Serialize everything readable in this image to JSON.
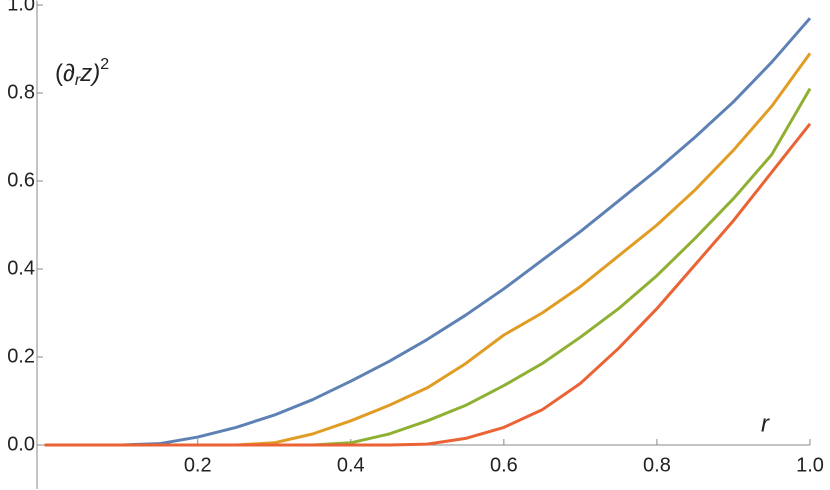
{
  "chart_data": {
    "type": "line",
    "xlabel": "r",
    "ylabel": {
      "open": "(∂",
      "sub": "r",
      "mid": "z)",
      "sup": "2"
    },
    "x": [
      0,
      0.05,
      0.1,
      0.15,
      0.2,
      0.25,
      0.3,
      0.35,
      0.4,
      0.45,
      0.5,
      0.55,
      0.6,
      0.65,
      0.7,
      0.75,
      0.8,
      0.85,
      0.9,
      0.95,
      1.0
    ],
    "series": [
      {
        "color": "#5e81b5",
        "values": [
          0,
          0,
          0,
          0.003,
          0.018,
          0.04,
          0.068,
          0.103,
          0.145,
          0.19,
          0.24,
          0.295,
          0.355,
          0.42,
          0.485,
          0.555,
          0.625,
          0.7,
          0.78,
          0.87,
          0.97
        ]
      },
      {
        "color": "#e19c24",
        "values": [
          0,
          0,
          0,
          0,
          0,
          0,
          0.005,
          0.025,
          0.055,
          0.09,
          0.13,
          0.185,
          0.25,
          0.3,
          0.36,
          0.43,
          0.5,
          0.58,
          0.67,
          0.77,
          0.89
        ]
      },
      {
        "color": "#8fb032",
        "values": [
          0,
          0,
          0,
          0,
          0,
          0,
          0,
          0,
          0.005,
          0.025,
          0.055,
          0.09,
          0.135,
          0.185,
          0.245,
          0.31,
          0.385,
          0.47,
          0.56,
          0.66,
          0.81
        ]
      },
      {
        "color": "#eb6235",
        "values": [
          0,
          0,
          0,
          0,
          0,
          0,
          0,
          0,
          0,
          0,
          0.002,
          0.015,
          0.04,
          0.08,
          0.14,
          0.22,
          0.31,
          0.41,
          0.51,
          0.62,
          0.73
        ]
      }
    ],
    "xlim": [
      -0.01,
      1.0
    ],
    "ylim": [
      -0.1,
      1.01
    ],
    "xticks": [
      0.2,
      0.4,
      0.6,
      0.8,
      {
        "value": 1.0,
        "label": "1.0"
      }
    ],
    "yticks": [
      {
        "value": 0,
        "label": "0.0"
      },
      0.2,
      0.4,
      0.6,
      0.8,
      {
        "value": 1.0,
        "label": "1.0"
      }
    ],
    "grid": false
  }
}
